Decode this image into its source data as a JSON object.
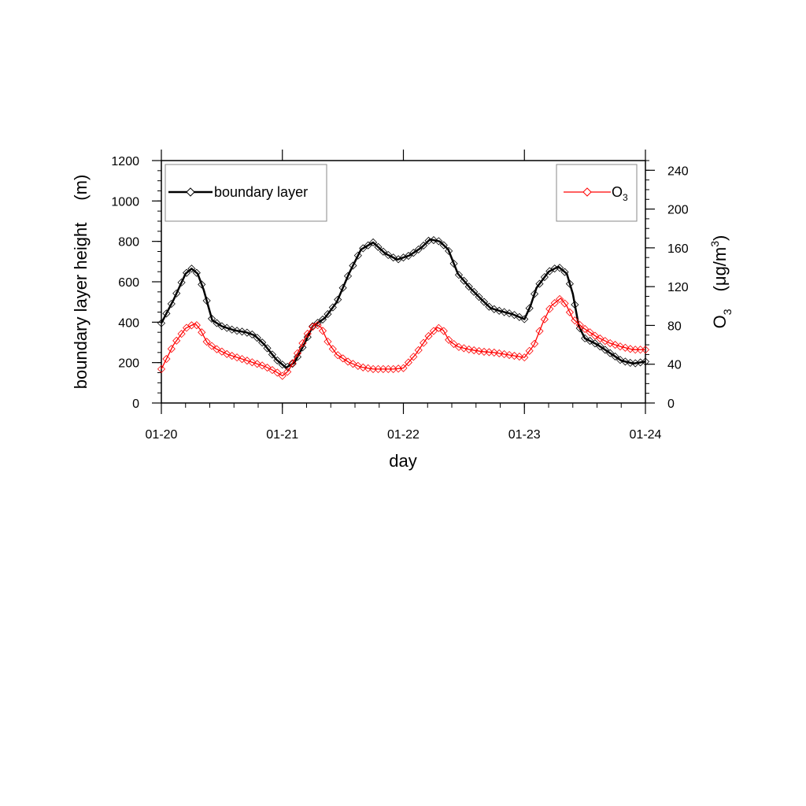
{
  "chart_data": {
    "type": "line",
    "xlabel": "day",
    "x_ticks": [
      "01-20",
      "01-21",
      "01-22",
      "01-23",
      "01-24"
    ],
    "xlim": [
      0,
      4
    ],
    "left_axis": {
      "label": "boundary layer height",
      "unit": "(m)",
      "ylim": [
        0,
        1200
      ],
      "ticks": [
        "0",
        "200",
        "400",
        "600",
        "800",
        "1000",
        "1200"
      ]
    },
    "right_axis": {
      "label_base": "O",
      "label_sub": "3",
      "unit": "(μg/m",
      "unit_sup": "3",
      "unit_close": ")",
      "ylim": [
        0,
        250
      ],
      "ticks": [
        "0",
        "40",
        "80",
        "120",
        "160",
        "200",
        "240"
      ]
    },
    "legend_left": {
      "label": "boundary layer",
      "position": "top-left"
    },
    "legend_right": {
      "label_base": "O",
      "label_sub": "3",
      "position": "top-right"
    },
    "series": [
      {
        "name": "boundary layer",
        "axis": "left",
        "color": "#000000",
        "points": [
          [
            0,
            395
          ],
          [
            0.1,
            510
          ],
          [
            0.2,
            640
          ],
          [
            0.25,
            665
          ],
          [
            0.3,
            640
          ],
          [
            0.35,
            560
          ],
          [
            0.42,
            410
          ],
          [
            0.5,
            380
          ],
          [
            0.6,
            360
          ],
          [
            0.7,
            350
          ],
          [
            0.77,
            335
          ],
          [
            0.85,
            290
          ],
          [
            0.95,
            215
          ],
          [
            1.03,
            175
          ],
          [
            1.1,
            200
          ],
          [
            1.18,
            290
          ],
          [
            1.25,
            380
          ],
          [
            1.35,
            420
          ],
          [
            1.45,
            500
          ],
          [
            1.55,
            640
          ],
          [
            1.65,
            760
          ],
          [
            1.75,
            795
          ],
          [
            1.85,
            740
          ],
          [
            1.95,
            710
          ],
          [
            2.05,
            730
          ],
          [
            2.15,
            770
          ],
          [
            2.22,
            810
          ],
          [
            2.3,
            800
          ],
          [
            2.37,
            760
          ],
          [
            2.45,
            640
          ],
          [
            2.55,
            570
          ],
          [
            2.65,
            510
          ],
          [
            2.72,
            470
          ],
          [
            2.8,
            455
          ],
          [
            2.9,
            440
          ],
          [
            3.0,
            415
          ],
          [
            3.05,
            480
          ],
          [
            3.1,
            570
          ],
          [
            3.2,
            650
          ],
          [
            3.28,
            675
          ],
          [
            3.35,
            640
          ],
          [
            3.4,
            540
          ],
          [
            3.45,
            380
          ],
          [
            3.5,
            320
          ],
          [
            3.6,
            290
          ],
          [
            3.7,
            250
          ],
          [
            3.8,
            210
          ],
          [
            3.9,
            195
          ],
          [
            4.0,
            205
          ]
        ]
      },
      {
        "name": "O₃",
        "axis": "right",
        "color": "#ff0000",
        "points": [
          [
            0,
            35
          ],
          [
            0.1,
            60
          ],
          [
            0.2,
            77
          ],
          [
            0.28,
            82
          ],
          [
            0.32,
            76
          ],
          [
            0.38,
            62
          ],
          [
            0.45,
            56
          ],
          [
            0.55,
            50
          ],
          [
            0.65,
            46
          ],
          [
            0.75,
            42
          ],
          [
            0.85,
            38
          ],
          [
            0.95,
            32
          ],
          [
            1.0,
            28
          ],
          [
            1.05,
            33
          ],
          [
            1.12,
            50
          ],
          [
            1.2,
            70
          ],
          [
            1.27,
            82
          ],
          [
            1.32,
            78
          ],
          [
            1.38,
            62
          ],
          [
            1.45,
            50
          ],
          [
            1.55,
            42
          ],
          [
            1.65,
            37
          ],
          [
            1.75,
            35
          ],
          [
            1.85,
            35
          ],
          [
            1.92,
            35
          ],
          [
            2.0,
            36
          ],
          [
            2.1,
            50
          ],
          [
            2.2,
            68
          ],
          [
            2.28,
            78
          ],
          [
            2.33,
            75
          ],
          [
            2.38,
            64
          ],
          [
            2.45,
            58
          ],
          [
            2.55,
            55
          ],
          [
            2.65,
            53
          ],
          [
            2.75,
            52
          ],
          [
            2.85,
            50
          ],
          [
            2.95,
            48
          ],
          [
            3.0,
            47
          ],
          [
            3.08,
            60
          ],
          [
            3.15,
            82
          ],
          [
            3.22,
            100
          ],
          [
            3.3,
            108
          ],
          [
            3.35,
            100
          ],
          [
            3.4,
            87
          ],
          [
            3.48,
            78
          ],
          [
            3.6,
            68
          ],
          [
            3.7,
            62
          ],
          [
            3.8,
            58
          ],
          [
            3.9,
            55
          ],
          [
            4.0,
            55
          ]
        ]
      }
    ]
  }
}
